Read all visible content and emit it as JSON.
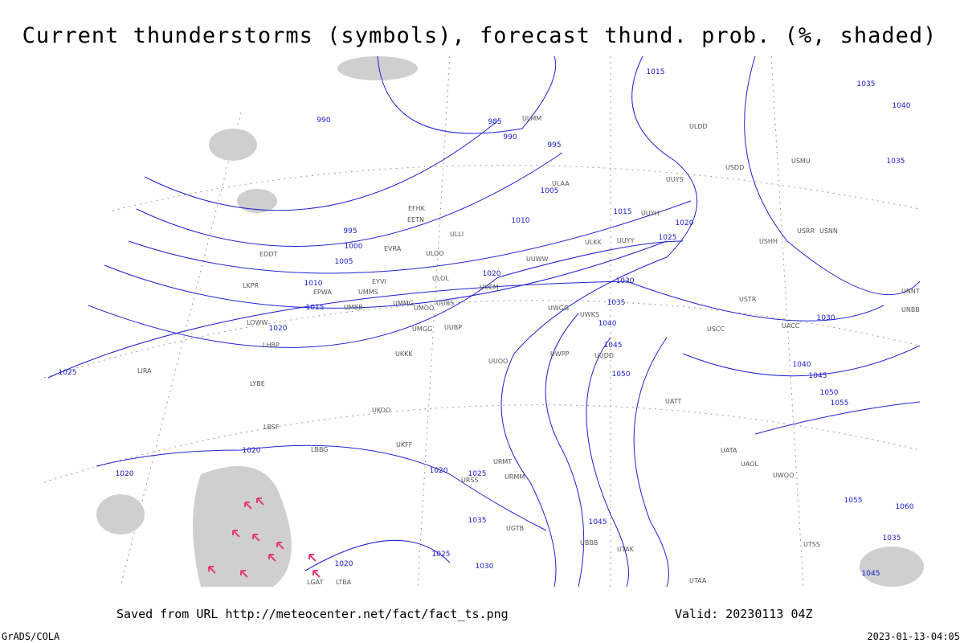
{
  "header": {
    "title": "Current thunderstorms (symbols), forecast thund. prob. (%, shaded)"
  },
  "footer": {
    "source": "Saved from URL http://meteocenter.net/fact/fact_ts.png",
    "valid": "Valid: 20230113 04Z",
    "software": "GrADS/COLA",
    "timestamp": "2023-01-13-04:05"
  },
  "isobar_labels": [
    990,
    985,
    990,
    995,
    1005,
    1010,
    1015,
    1020,
    1025,
    995,
    1000,
    1005,
    1010,
    1015,
    1020,
    1020,
    1030,
    1035,
    1040,
    1045,
    1050,
    1015,
    1035,
    1040,
    1035,
    1030,
    1040,
    1045,
    1050,
    1055,
    1025,
    1020,
    1020,
    1020,
    1025,
    1035,
    1025,
    1030,
    1020,
    1045,
    1055,
    1060,
    1035,
    1045
  ],
  "stations": [
    "ULMM",
    "ULAA",
    "UUYS",
    "UUYH",
    "UUYY",
    "ULKK",
    "UUWW",
    "ULOL",
    "UUEM",
    "UMMS",
    "EYVI",
    "EPWA",
    "UMBB",
    "UMMG",
    "UMOO",
    "UUBS",
    "UWGG",
    "UWKS",
    "UUBP",
    "UMGG",
    "UKKK",
    "LKPR",
    "EDDT",
    "LOWW",
    "LHBP",
    "LIRA",
    "LYBE",
    "LBSF",
    "LBBG",
    "EFHK",
    "EETN",
    "ULLI",
    "EVRA",
    "ULOO",
    "ULDD",
    "USDD",
    "USMU",
    "USRR",
    "USNN",
    "USHH",
    "USTR",
    "USCC",
    "UACC",
    "UATT",
    "UATA",
    "UAOL",
    "UWOO",
    "URMT",
    "URMM",
    "URSS",
    "UKFF",
    "UKOO",
    "UUOO",
    "UWPP",
    "UUDD",
    "UNBB",
    "UNNT",
    "UTAA",
    "UTSS",
    "UTAK",
    "UBBB",
    "UGTB",
    "LTBA",
    "LGAT"
  ]
}
